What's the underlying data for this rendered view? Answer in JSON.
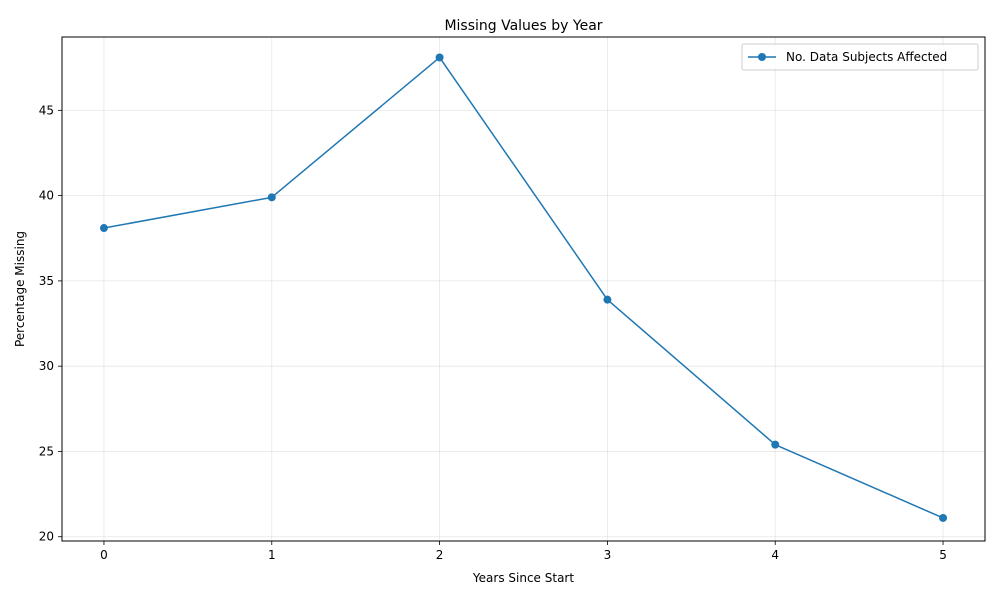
{
  "chart_data": {
    "type": "line",
    "title": "Missing Values by Year",
    "xlabel": "Years Since Start",
    "ylabel": "Percentage Missing",
    "x": [
      0,
      1,
      2,
      3,
      4,
      5
    ],
    "xticks": [
      0,
      1,
      2,
      3,
      4,
      5
    ],
    "yticks": [
      20,
      25,
      30,
      35,
      40,
      45
    ],
    "xlim": [
      -0.25,
      5.25
    ],
    "ylim": [
      19.75,
      49.3
    ],
    "grid": true,
    "legend_position": "top-right",
    "series": [
      {
        "name": "No. Data Subjects Affected",
        "color": "#1f77b4",
        "marker": "circle",
        "values": [
          38.1,
          39.9,
          48.1,
          33.9,
          25.4,
          21.1
        ]
      }
    ]
  }
}
